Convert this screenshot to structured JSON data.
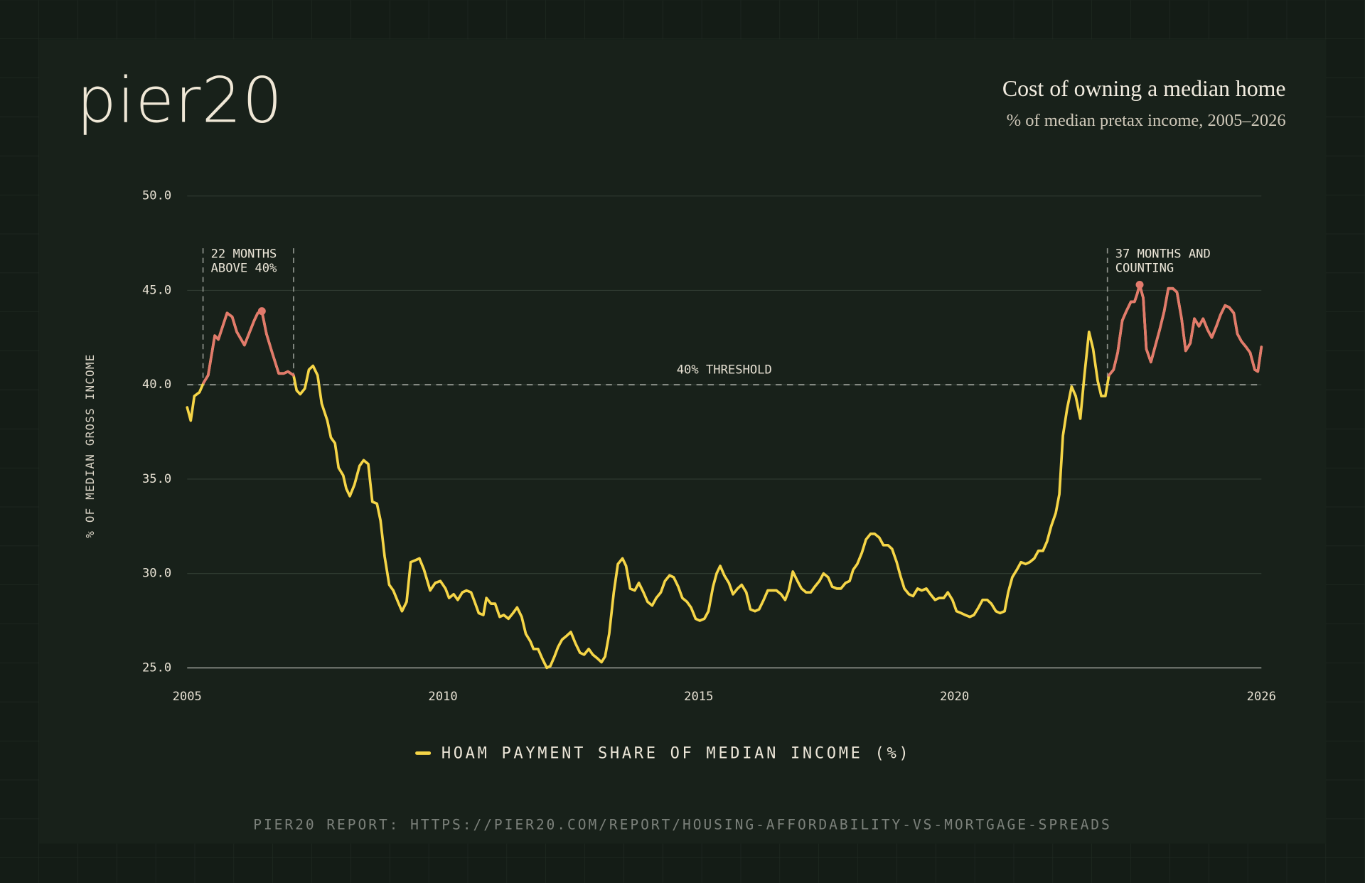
{
  "brand": "pier20",
  "footer": "PIER20 REPORT: HTTPS://PIER20.COM/REPORT/HOUSING-AFFORDABILITY-VS-MORTGAGE-SPREADS",
  "chart_data": {
    "type": "line",
    "title": "Cost of owning a median home",
    "subtitle": "% of median pretax income, 2005–2026",
    "y_label": "% OF MEDIAN GROSS INCOME",
    "xlim": [
      2005,
      2026
    ],
    "xticks": [
      2005,
      2010,
      2015,
      2020,
      2026
    ],
    "ylim": [
      25,
      50
    ],
    "yticks": [
      {
        "value": 25,
        "label": "25.0"
      },
      {
        "value": 30,
        "label": "30.0"
      },
      {
        "value": 35,
        "label": "35.0"
      },
      {
        "value": 40,
        "label": "40.0"
      },
      {
        "value": 45,
        "label": "45.0"
      },
      {
        "value": 50,
        "label": "50.0"
      }
    ],
    "grid": true,
    "threshold": {
      "value": 40,
      "label": "40% THRESHOLD"
    },
    "annotations": [
      {
        "lines": [
          "22 MONTHS",
          "ABOVE 40%"
        ],
        "x0": 2005.31,
        "x1": 2007.08
      },
      {
        "lines": [
          "37 MONTHS AND",
          "COUNTING"
        ],
        "x0": 2022.99
      }
    ],
    "x": [
      2005.0,
      2005.07,
      2005.14,
      2005.24,
      2005.32,
      2005.41,
      2005.54,
      2005.61,
      2005.78,
      2005.88,
      2005.97,
      2006.12,
      2006.31,
      2006.38,
      2006.46,
      2006.55,
      2006.65,
      2006.79,
      2006.89,
      2006.97,
      2007.08,
      2007.14,
      2007.21,
      2007.3,
      2007.38,
      2007.46,
      2007.55,
      2007.63,
      2007.74,
      2007.81,
      2007.89,
      2007.96,
      2008.05,
      2008.11,
      2008.18,
      2008.27,
      2008.37,
      2008.45,
      2008.54,
      2008.62,
      2008.71,
      2008.78,
      2008.86,
      2008.95,
      2009.03,
      2009.12,
      2009.2,
      2009.29,
      2009.37,
      2009.46,
      2009.54,
      2009.63,
      2009.75,
      2009.85,
      2009.95,
      2010.05,
      2010.12,
      2010.21,
      2010.29,
      2010.38,
      2010.46,
      2010.55,
      2010.62,
      2010.7,
      2010.79,
      2010.85,
      2010.94,
      2011.02,
      2011.11,
      2011.19,
      2011.28,
      2011.37,
      2011.45,
      2011.54,
      2011.62,
      2011.71,
      2011.77,
      2011.86,
      2011.94,
      2012.03,
      2012.1,
      2012.18,
      2012.25,
      2012.33,
      2012.42,
      2012.5,
      2012.59,
      2012.68,
      2012.76,
      2012.85,
      2012.93,
      2013.02,
      2013.1,
      2013.17,
      2013.25,
      2013.34,
      2013.42,
      2013.51,
      2013.58,
      2013.66,
      2013.75,
      2013.83,
      2013.92,
      2014.0,
      2014.09,
      2014.17,
      2014.26,
      2014.34,
      2014.43,
      2014.51,
      2014.6,
      2014.68,
      2014.77,
      2014.85,
      2014.94,
      2015.02,
      2015.11,
      2015.19,
      2015.28,
      2015.35,
      2015.42,
      2015.5,
      2015.59,
      2015.67,
      2015.76,
      2015.84,
      2015.93,
      2016.01,
      2016.1,
      2016.18,
      2016.27,
      2016.35,
      2016.44,
      2016.52,
      2016.61,
      2016.69,
      2016.76,
      2016.84,
      2016.93,
      2017.01,
      2017.1,
      2017.19,
      2017.27,
      2017.36,
      2017.44,
      2017.53,
      2017.61,
      2017.7,
      2017.78,
      2017.87,
      2017.95,
      2018.02,
      2018.1,
      2018.19,
      2018.27,
      2018.36,
      2018.44,
      2018.53,
      2018.61,
      2018.7,
      2018.78,
      2018.87,
      2018.94,
      2019.02,
      2019.11,
      2019.19,
      2019.28,
      2019.36,
      2019.45,
      2019.53,
      2019.62,
      2019.7,
      2019.79,
      2019.87,
      2019.96,
      2020.04,
      2020.13,
      2020.21,
      2020.3,
      2020.38,
      2020.47,
      2020.55,
      2020.64,
      2020.72,
      2020.81,
      2020.89,
      2020.98,
      2021.05,
      2021.13,
      2021.22,
      2021.3,
      2021.39,
      2021.47,
      2021.56,
      2021.64,
      2021.73,
      2021.81,
      2021.89,
      2021.98,
      2022.05,
      2022.12,
      2022.2,
      2022.29,
      2022.37,
      2022.46,
      2022.54,
      2022.63,
      2022.71,
      2022.8,
      2022.87,
      2022.95,
      2023.02,
      2023.11,
      2023.19,
      2023.28,
      2023.36,
      2023.45,
      2023.52,
      2023.57,
      2023.62,
      2023.69,
      2023.75,
      2023.84,
      2023.93,
      2024.01,
      2024.1,
      2024.18,
      2024.27,
      2024.35,
      2024.44,
      2024.52,
      2024.61,
      2024.69,
      2024.78,
      2024.86,
      2024.95,
      2025.03,
      2025.12,
      2025.2,
      2025.29,
      2025.37,
      2025.46,
      2025.53,
      2025.61,
      2025.7,
      2025.78,
      2025.87,
      2025.93,
      2026.0
    ],
    "series": [
      {
        "name": "HOAM PAYMENT SHARE OF MEDIAN INCOME (%)",
        "color": "#f5d547",
        "highlight_color": "#e27a6c",
        "values": [
          38.8,
          38.1,
          39.4,
          39.6,
          40.1,
          40.5,
          42.6,
          42.4,
          43.8,
          43.6,
          42.8,
          42.1,
          43.4,
          43.8,
          43.9,
          42.7,
          41.8,
          40.6,
          40.6,
          40.7,
          40.5,
          39.7,
          39.5,
          39.8,
          40.8,
          41.0,
          40.5,
          39.0,
          38.1,
          37.2,
          36.9,
          35.6,
          35.2,
          34.5,
          34.1,
          34.7,
          35.7,
          36.0,
          35.8,
          33.8,
          33.7,
          32.8,
          30.9,
          29.4,
          29.1,
          28.5,
          28.0,
          28.5,
          30.6,
          30.7,
          30.8,
          30.2,
          29.1,
          29.5,
          29.6,
          29.2,
          28.7,
          28.9,
          28.6,
          29.0,
          29.1,
          29.0,
          28.5,
          27.9,
          27.8,
          28.7,
          28.4,
          28.4,
          27.7,
          27.8,
          27.6,
          27.9,
          28.2,
          27.7,
          26.8,
          26.4,
          26.0,
          26.0,
          25.5,
          25.0,
          25.1,
          25.6,
          26.1,
          26.5,
          26.7,
          26.9,
          26.3,
          25.8,
          25.7,
          26.0,
          25.7,
          25.5,
          25.3,
          25.6,
          26.8,
          29.0,
          30.5,
          30.8,
          30.4,
          29.2,
          29.1,
          29.5,
          29.0,
          28.5,
          28.3,
          28.7,
          29.0,
          29.6,
          29.9,
          29.8,
          29.3,
          28.7,
          28.5,
          28.2,
          27.6,
          27.5,
          27.6,
          28.0,
          29.3,
          30.0,
          30.4,
          29.9,
          29.5,
          28.9,
          29.2,
          29.4,
          29.0,
          28.1,
          28.0,
          28.1,
          28.6,
          29.1,
          29.1,
          29.1,
          28.9,
          28.6,
          29.1,
          30.1,
          29.6,
          29.2,
          29.0,
          29.0,
          29.3,
          29.6,
          30.0,
          29.8,
          29.3,
          29.2,
          29.2,
          29.5,
          29.6,
          30.2,
          30.5,
          31.1,
          31.8,
          32.1,
          32.1,
          31.9,
          31.5,
          31.5,
          31.3,
          30.6,
          29.9,
          29.2,
          28.9,
          28.8,
          29.2,
          29.1,
          29.2,
          28.9,
          28.6,
          28.7,
          28.7,
          29.0,
          28.6,
          28.0,
          27.9,
          27.8,
          27.7,
          27.8,
          28.2,
          28.6,
          28.6,
          28.4,
          28.0,
          27.9,
          28.0,
          29.0,
          29.8,
          30.2,
          30.6,
          30.5,
          30.6,
          30.8,
          31.2,
          31.2,
          31.7,
          32.5,
          33.2,
          34.2,
          37.3,
          38.7,
          39.9,
          39.4,
          38.2,
          40.5,
          42.8,
          41.9,
          40.2,
          39.4,
          39.4,
          40.5,
          40.8,
          41.7,
          43.4,
          43.9,
          44.4,
          44.4,
          44.8,
          45.3,
          44.6,
          41.9,
          41.2,
          42.1,
          42.9,
          43.9,
          45.1,
          45.1,
          44.9,
          43.5,
          41.8,
          42.2,
          43.5,
          43.1,
          43.5,
          42.9,
          42.5,
          43.1,
          43.7,
          44.2,
          44.1,
          43.8,
          42.7,
          42.3,
          42.0,
          41.7,
          40.8,
          40.7,
          42.0
        ]
      }
    ]
  }
}
